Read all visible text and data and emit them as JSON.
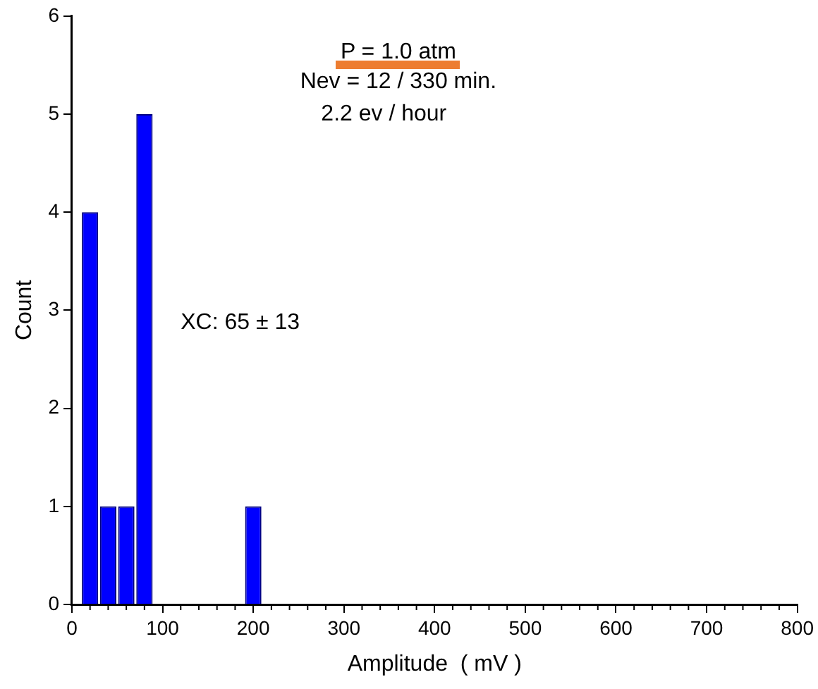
{
  "chart_data": {
    "type": "histogram",
    "xlabel": "Amplitude  ( mV )",
    "ylabel": "Count",
    "bins": [
      10,
      30,
      50,
      70,
      90,
      110,
      130,
      150,
      170,
      190,
      210
    ],
    "values": [
      4,
      1,
      1,
      5,
      0,
      0,
      0,
      0,
      0,
      1
    ],
    "color": "#0000ff",
    "xlim": [
      0,
      800
    ],
    "xticks": [
      0,
      {
        "value": 20,
        "label": null
      },
      {
        "value": 40,
        "label": null
      },
      {
        "value": 60,
        "label": null
      },
      {
        "value": 80,
        "label": null
      },
      100,
      {
        "value": 120,
        "label": null
      },
      {
        "value": 140,
        "label": null
      },
      {
        "value": 160,
        "label": null
      },
      {
        "value": 180,
        "label": null
      },
      200,
      {
        "value": 220,
        "label": null
      },
      {
        "value": 240,
        "label": null
      },
      {
        "value": 260,
        "label": null
      },
      {
        "value": 280,
        "label": null
      },
      300,
      {
        "value": 320,
        "label": null
      },
      {
        "value": 340,
        "label": null
      },
      {
        "value": 360,
        "label": null
      },
      {
        "value": 380,
        "label": null
      },
      400,
      {
        "value": 420,
        "label": null
      },
      {
        "value": 440,
        "label": null
      },
      {
        "value": 460,
        "label": null
      },
      {
        "value": 480,
        "label": null
      },
      500,
      {
        "value": 520,
        "label": null
      },
      {
        "value": 540,
        "label": null
      },
      {
        "value": 560,
        "label": null
      },
      {
        "value": 580,
        "label": null
      },
      600,
      {
        "value": 620,
        "label": null
      },
      {
        "value": 640,
        "label": null
      },
      {
        "value": 660,
        "label": null
      },
      {
        "value": 680,
        "label": null
      },
      700,
      {
        "value": 720,
        "label": null
      },
      {
        "value": 740,
        "label": null
      },
      {
        "value": 760,
        "label": null
      },
      {
        "value": 780,
        "label": null
      },
      800
    ],
    "ylim": [
      0,
      6
    ],
    "yticks": [
      0,
      1,
      2,
      3,
      4,
      5,
      6
    ],
    "grid": false,
    "legend": false,
    "annotations": [
      "P = 1.0 atm",
      "Nev = 12 / 330 min.",
      "2.2 ev / hour",
      "XC: 65 ± 13"
    ]
  }
}
